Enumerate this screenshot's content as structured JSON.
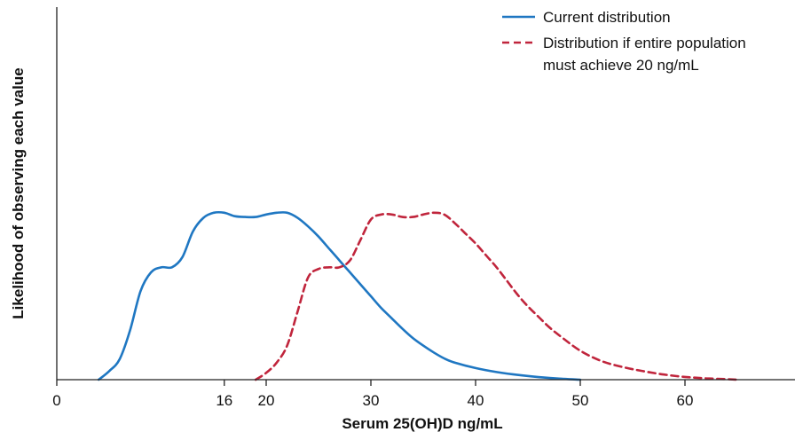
{
  "chart_data": {
    "type": "line",
    "title": "",
    "xlabel": "Serum 25(OH)D ng/mL",
    "ylabel": "Likelihood of observing each value",
    "xlim": [
      0,
      70
    ],
    "ylim": [
      0,
      1
    ],
    "x_ticks": [
      0,
      16,
      20,
      30,
      40,
      50,
      60
    ],
    "x_tick_labels": [
      "0",
      "16",
      "20",
      "30",
      "40",
      "50",
      "60"
    ],
    "y_ticks_shown": false,
    "grid": false,
    "legend_position": "top-right",
    "series": [
      {
        "name": "Current distribution",
        "color": "#1f77c2",
        "style": "solid",
        "x": [
          4,
          5,
          6,
          7,
          8,
          9,
          10,
          11,
          12,
          13,
          14,
          15,
          16,
          17,
          18,
          19,
          20,
          21,
          22,
          23,
          24,
          25,
          26,
          27,
          28,
          29,
          30,
          31,
          32,
          33,
          34,
          35,
          36,
          37,
          38,
          40,
          42,
          44,
          46,
          48,
          50
        ],
        "y": [
          0,
          0.05,
          0.12,
          0.29,
          0.52,
          0.63,
          0.66,
          0.66,
          0.72,
          0.87,
          0.95,
          0.98,
          0.98,
          0.96,
          0.955,
          0.955,
          0.97,
          0.98,
          0.98,
          0.95,
          0.9,
          0.84,
          0.77,
          0.7,
          0.63,
          0.56,
          0.49,
          0.42,
          0.36,
          0.3,
          0.245,
          0.2,
          0.16,
          0.125,
          0.1,
          0.068,
          0.045,
          0.028,
          0.015,
          0.006,
          0
        ]
      },
      {
        "name": "Distribution if entire population must achieve 20 ng/mL",
        "color": "#c0253c",
        "style": "dashed",
        "x": [
          19,
          20,
          21,
          22,
          23,
          24,
          25,
          26,
          27,
          28,
          29,
          30,
          31,
          32,
          33,
          34,
          35,
          36,
          37,
          38,
          39,
          40,
          41,
          42,
          43,
          44,
          45,
          46,
          47,
          48,
          50,
          52,
          54,
          56,
          58,
          60,
          62,
          64,
          65
        ],
        "y": [
          0,
          0.04,
          0.1,
          0.2,
          0.4,
          0.6,
          0.65,
          0.66,
          0.66,
          0.7,
          0.82,
          0.94,
          0.97,
          0.97,
          0.955,
          0.955,
          0.97,
          0.98,
          0.97,
          0.92,
          0.86,
          0.8,
          0.73,
          0.66,
          0.58,
          0.5,
          0.43,
          0.37,
          0.31,
          0.26,
          0.17,
          0.11,
          0.075,
          0.05,
          0.03,
          0.016,
          0.008,
          0.003,
          0
        ]
      }
    ]
  },
  "legend": {
    "items": [
      {
        "line1": "Current distribution",
        "line2": "",
        "color": "#1f77c2",
        "dash": ""
      },
      {
        "line1": "Distribution if entire population",
        "line2": "must achieve 20 ng/mL",
        "color": "#c0253c",
        "dash": "8 5"
      }
    ]
  }
}
